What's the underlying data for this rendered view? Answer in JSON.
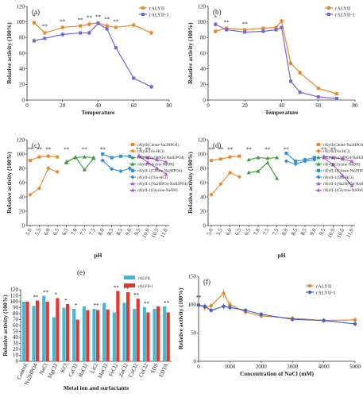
{
  "colors": {
    "alyii": "#e8872b",
    "alyii1": "#7266d8",
    "heat_alyii": "#e8342a",
    "heat_alyii1": "#3cbad6",
    "ph_series": [
      "#e8872b",
      "#e8872b",
      "#3a9a3a",
      "#3a9a3a",
      "#2b8fd8",
      "#2b8fd8",
      "#b45bd6",
      "#b45bd6"
    ]
  },
  "chart_data": [
    {
      "panel": "(a)",
      "type": "line",
      "xlabel": "Temperature",
      "ylabel": "Relative activity (100%)",
      "xlim": [
        0,
        80
      ],
      "ylim": [
        0,
        120
      ],
      "xticks": [
        "0",
        "20",
        "40",
        "60",
        "80"
      ],
      "yticks": [
        "0",
        "20",
        "40",
        "60",
        "80",
        "100",
        "120"
      ],
      "legend": [
        "rALYII",
        "rALYII-1"
      ],
      "series": [
        {
          "name": "rALYII",
          "color": "#e8872b",
          "x": [
            4,
            10,
            20,
            30,
            35,
            40,
            45,
            50,
            60,
            70
          ],
          "y": [
            99,
            86,
            93,
            95,
            97,
            99,
            95,
            93,
            96,
            86
          ],
          "err": [
            3,
            3,
            2,
            2,
            3,
            2,
            3,
            2,
            3,
            3
          ]
        },
        {
          "name": "rALYII-1",
          "color": "#7266d8",
          "x": [
            4,
            10,
            20,
            30,
            35,
            40,
            45,
            50,
            60,
            70
          ],
          "y": [
            76,
            79,
            84,
            86,
            86,
            98,
            91,
            67,
            28,
            17
          ],
          "err": [
            3,
            2,
            3,
            2,
            3,
            2,
            2,
            2,
            2,
            3
          ]
        }
      ],
      "annotations": [
        "*",
        "**",
        "**",
        "**",
        "**",
        "**",
        "**",
        "**"
      ]
    },
    {
      "panel": "(b)",
      "type": "line",
      "xlabel": "Temperature",
      "ylabel": "Relative activity (100%)",
      "xlim": [
        0,
        80
      ],
      "ylim": [
        0,
        120
      ],
      "xticks": [
        "0",
        "20",
        "40",
        "60",
        "80"
      ],
      "yticks": [
        "0",
        "20",
        "40",
        "60",
        "80",
        "100",
        "120"
      ],
      "legend": [
        "rALYII",
        "rALYII-1"
      ],
      "series": [
        {
          "name": "rALYII",
          "color": "#e8872b",
          "x": [
            4,
            10,
            20,
            30,
            37,
            40,
            45,
            50,
            60,
            70
          ],
          "y": [
            88,
            92,
            90,
            92,
            93,
            101,
            47,
            35,
            15,
            8
          ],
          "err": [
            3,
            2,
            2,
            2,
            2,
            3,
            3,
            3,
            2,
            2
          ]
        },
        {
          "name": "rALYII-1",
          "color": "#7266d8",
          "x": [
            4,
            10,
            20,
            30,
            37,
            40,
            45,
            50,
            60,
            70
          ],
          "y": [
            97,
            90,
            87,
            88,
            90,
            93,
            24,
            10,
            4,
            2
          ],
          "err": [
            3,
            2,
            2,
            2,
            2,
            2,
            2,
            2,
            2,
            1
          ]
        }
      ],
      "annotations": [
        "*",
        "**",
        "**"
      ]
    },
    {
      "panel": "(c)",
      "type": "line",
      "xlabel": "pH",
      "ylabel": "Relative activity (100%)",
      "ylim": [
        0,
        120
      ],
      "xticks": [
        "5.0",
        "5.5",
        "6.0",
        "6.5",
        "6.5",
        "7.0",
        "7.5",
        "7.5",
        "8.0",
        "8.5",
        "8.5",
        "9.0",
        "9.5",
        "10.0",
        "10.5",
        "11.0"
      ],
      "yticks": [
        "0",
        "20",
        "40",
        "60",
        "80",
        "100",
        "120"
      ],
      "legend": [
        "rAlyII(Citrate-Na2HPO4)",
        "rAlyII(Tris-HCl)",
        "rAlyII(Na2HPO4-NaH2PO4)",
        "rAlyII(Glycine-NaOH)",
        "rAlyII-1(Citrate-Na2HPO4)",
        "rAlyII-1(Tris-HCl)",
        "rAlyII-1(Na2HPO4-NaH2PO4)",
        "rAlyII-1(Glycine-NaOH)"
      ],
      "series": [
        {
          "color": "#e8872b",
          "marker": "square",
          "x": [
            0,
            1,
            2,
            3
          ],
          "y": [
            91,
            96,
            97,
            96
          ]
        },
        {
          "color": "#e8872b",
          "marker": "diamond",
          "x": [
            0,
            1,
            2,
            3
          ],
          "y": [
            43,
            52,
            80,
            75
          ]
        },
        {
          "color": "#3a9a3a",
          "marker": "triangle",
          "x": [
            4,
            5,
            6,
            7
          ],
          "y": [
            89,
            95,
            96,
            95
          ]
        },
        {
          "color": "#3a9a3a",
          "marker": "triangle",
          "x": [
            4,
            5,
            6,
            7
          ],
          "y": [
            88,
            96,
            78,
            94
          ]
        },
        {
          "color": "#2b8fd8",
          "marker": "square",
          "x": [
            8,
            9,
            10,
            11
          ],
          "y": [
            100,
            95,
            97,
            97
          ]
        },
        {
          "color": "#2b8fd8",
          "marker": "diamond",
          "x": [
            8,
            9,
            10,
            11
          ],
          "y": [
            91,
            79,
            76,
            80
          ]
        },
        {
          "color": "#b45bd6",
          "marker": "triangle",
          "x": [
            12,
            13,
            14,
            15
          ],
          "y": [
            97,
            95,
            92,
            89
          ]
        },
        {
          "color": "#b45bd6",
          "marker": "triangle",
          "x": [
            12,
            13,
            14,
            15
          ],
          "y": [
            98,
            88,
            80,
            72
          ]
        }
      ]
    },
    {
      "panel": "(d)",
      "type": "line",
      "xlabel": "pH",
      "ylabel": "Relative activity (100%)",
      "ylim": [
        0,
        120
      ],
      "xticks": [
        "5.0",
        "5.5",
        "6.0",
        "6.5",
        "6.5",
        "7.0",
        "7.5",
        "7.5",
        "8.0",
        "8.5",
        "8.5",
        "9.0",
        "9.5",
        "10.0",
        "10.5",
        "11.0"
      ],
      "yticks": [
        "0",
        "20",
        "40",
        "60",
        "80",
        "100",
        "120"
      ],
      "legend": [
        "rAlyII(Citrate-Na2HPO4)",
        "rAlyII(Tris-HCl)",
        "rAlyII(Na2HPO4-NaH2PO4)",
        "rAlyII(Glycine-NaOH)",
        "rAlyII-1(Citrate-Na2HPO4)",
        "rAlyII-1(Tris-HCl)",
        "rAlyII-1(Na2HPO4-NaH2PO4)",
        "rAlyII-1(Glycine-NaOH)"
      ],
      "series": [
        {
          "color": "#e8872b",
          "marker": "square",
          "x": [
            0,
            1,
            2,
            3
          ],
          "y": [
            91,
            93,
            96,
            97
          ]
        },
        {
          "color": "#e8872b",
          "marker": "diamond",
          "x": [
            0,
            1,
            2,
            3
          ],
          "y": [
            43,
            58,
            74,
            68
          ]
        },
        {
          "color": "#3a9a3a",
          "marker": "triangle",
          "x": [
            4,
            5,
            6,
            7
          ],
          "y": [
            92,
            95,
            94,
            95
          ]
        },
        {
          "color": "#3a9a3a",
          "marker": "triangle",
          "x": [
            4,
            5,
            6,
            7
          ],
          "y": [
            74,
            76,
            88,
            66
          ]
        },
        {
          "color": "#2b8fd8",
          "marker": "square",
          "x": [
            8,
            9,
            10,
            11
          ],
          "y": [
            101,
            90,
            92,
            95
          ]
        },
        {
          "color": "#2b8fd8",
          "marker": "diamond",
          "x": [
            8,
            9,
            10,
            11
          ],
          "y": [
            90,
            86,
            90,
            92
          ]
        },
        {
          "color": "#b45bd6",
          "marker": "triangle",
          "x": [
            12,
            13,
            14,
            15
          ],
          "y": [
            97,
            95,
            93,
            90
          ]
        },
        {
          "color": "#b45bd6",
          "marker": "triangle",
          "x": [
            12,
            13,
            14,
            15
          ],
          "y": [
            95,
            85,
            70,
            56
          ]
        }
      ]
    },
    {
      "panel": "(e)",
      "type": "bar",
      "xlabel": "Metal ion and surfactants",
      "ylabel": "Relative activity (100%)",
      "ylim": [
        0,
        120
      ],
      "yticks": [
        "0",
        "10",
        "20",
        "30",
        "40",
        "50",
        "60",
        "70",
        "80",
        "90",
        "100",
        "110",
        "120"
      ],
      "legend": [
        "rALYII",
        "rALYII-1"
      ],
      "categories": [
        "Control",
        "Na2HPO4",
        "NaCl",
        "MgCl2",
        "KCl",
        "CaCl2",
        "BaCl2",
        "LiCl",
        "MnCl2",
        "FeCl2",
        "ZnCl2",
        "CuCl2",
        "CoCl2",
        "SDS",
        "EDTA"
      ],
      "series": [
        {
          "name": "rALYII",
          "color": "#3cbad6",
          "values": [
            100,
            93,
            110,
            74,
            90,
            88,
            92,
            88,
            98,
            82,
            98,
            88,
            91,
            88,
            92
          ]
        },
        {
          "name": "rALYII-1",
          "color": "#e8342a",
          "values": [
            100,
            102,
            100,
            106,
            96,
            70,
            86,
            86,
            87,
            118,
            116,
            105,
            82,
            92,
            82
          ]
        }
      ],
      "annotations": [
        "**",
        "**",
        "*",
        "*",
        "*",
        "**",
        "**",
        "**",
        "**",
        "**",
        "**"
      ]
    },
    {
      "panel": "(f)",
      "type": "line",
      "xlabel": "Concentration of NaCl (mM)",
      "ylabel": "Relative activity (100%)",
      "xlim": [
        0,
        5000
      ],
      "ylim": [
        0,
        150
      ],
      "xticks": [
        "0",
        "1000",
        "2000",
        "3000",
        "4000",
        "5000"
      ],
      "yticks": [
        "0",
        "50",
        "100",
        "150"
      ],
      "legend": [
        "rALYII",
        "rALYII-1"
      ],
      "series": [
        {
          "name": "rALYII",
          "color": "#e8872b",
          "x": [
            0,
            200,
            400,
            800,
            1000,
            1500,
            2000,
            3000,
            4000,
            5000
          ],
          "y": [
            100,
            95,
            98,
            120,
            100,
            87,
            80,
            76,
            72,
            73
          ],
          "err": [
            6,
            6,
            5,
            8,
            6,
            5,
            5,
            4,
            4,
            5
          ]
        },
        {
          "name": "rALYII-1",
          "color": "#4060c8",
          "x": [
            0,
            200,
            400,
            800,
            1000,
            1500,
            2000,
            3000,
            4000,
            5000
          ],
          "y": [
            99,
            97,
            90,
            97,
            95,
            90,
            83,
            74,
            72,
            66
          ],
          "err": [
            5,
            5,
            4,
            5,
            5,
            4,
            4,
            4,
            4,
            4
          ]
        }
      ],
      "annotations": [
        "**"
      ]
    }
  ]
}
